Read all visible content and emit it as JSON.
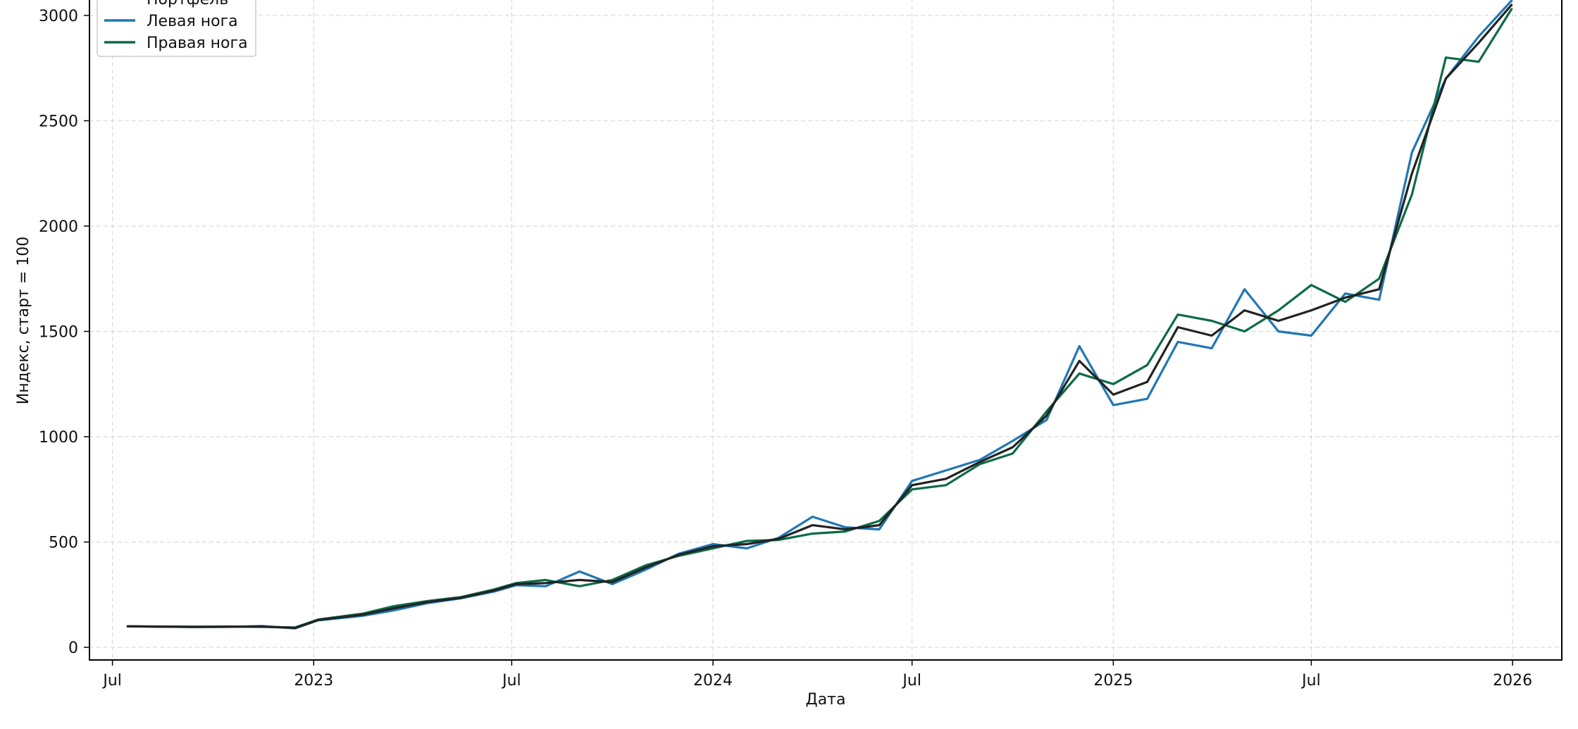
{
  "chart_data": {
    "type": "line",
    "xlabel": "Дата",
    "ylabel": "Индекс, старт = 100",
    "xlim": [
      "2022-06-10",
      "2026-02-15"
    ],
    "ylim": [
      -60,
      3080
    ],
    "yticks": [
      0,
      500,
      1000,
      1500,
      2000,
      2500,
      3000
    ],
    "xticks": [
      {
        "date": "2022-07-01",
        "label": "Jul"
      },
      {
        "date": "2023-01-01",
        "label": "2023"
      },
      {
        "date": "2023-07-01",
        "label": "Jul"
      },
      {
        "date": "2024-01-01",
        "label": "2024"
      },
      {
        "date": "2024-07-01",
        "label": "Jul"
      },
      {
        "date": "2025-01-01",
        "label": "2025"
      },
      {
        "date": "2025-07-01",
        "label": "Jul"
      },
      {
        "date": "2026-01-01",
        "label": "2026"
      }
    ],
    "grid": true,
    "legend_position": "top-left",
    "colors": {
      "portfolio": "#222222",
      "left": "#1f77b4",
      "right": "#0b6b45"
    },
    "series": [
      {
        "name": "Портфель",
        "color": "#222222",
        "points": [
          [
            "2022-07-15",
            100
          ],
          [
            "2022-08-15",
            98
          ],
          [
            "2022-09-15",
            97
          ],
          [
            "2022-10-15",
            98
          ],
          [
            "2022-11-15",
            99
          ],
          [
            "2022-12-15",
            92
          ],
          [
            "2023-01-05",
            130
          ],
          [
            "2023-02-15",
            155
          ],
          [
            "2023-03-15",
            185
          ],
          [
            "2023-04-15",
            215
          ],
          [
            "2023-05-15",
            235
          ],
          [
            "2023-06-15",
            270
          ],
          [
            "2023-07-05",
            300
          ],
          [
            "2023-08-01",
            305
          ],
          [
            "2023-09-01",
            320
          ],
          [
            "2023-10-01",
            310
          ],
          [
            "2023-11-01",
            380
          ],
          [
            "2023-12-01",
            440
          ],
          [
            "2024-01-01",
            480
          ],
          [
            "2024-02-01",
            490
          ],
          [
            "2024-03-01",
            515
          ],
          [
            "2024-04-01",
            580
          ],
          [
            "2024-05-01",
            560
          ],
          [
            "2024-06-01",
            580
          ],
          [
            "2024-07-01",
            770
          ],
          [
            "2024-08-01",
            800
          ],
          [
            "2024-09-01",
            880
          ],
          [
            "2024-10-01",
            950
          ],
          [
            "2024-11-01",
            1100
          ],
          [
            "2024-12-01",
            1360
          ],
          [
            "2025-01-01",
            1200
          ],
          [
            "2025-02-01",
            1260
          ],
          [
            "2025-03-01",
            1520
          ],
          [
            "2025-04-01",
            1480
          ],
          [
            "2025-05-01",
            1600
          ],
          [
            "2025-06-01",
            1550
          ],
          [
            "2025-07-01",
            1600
          ],
          [
            "2025-08-01",
            1660
          ],
          [
            "2025-09-01",
            1700
          ],
          [
            "2025-10-01",
            2250
          ],
          [
            "2025-11-01",
            2700
          ],
          [
            "2025-12-01",
            2870
          ],
          [
            "2025-12-31",
            3050
          ]
        ]
      },
      {
        "name": "Левая нога",
        "color": "#1f77b4",
        "points": [
          [
            "2022-07-15",
            100
          ],
          [
            "2022-08-15",
            98
          ],
          [
            "2022-09-15",
            96
          ],
          [
            "2022-10-15",
            97
          ],
          [
            "2022-11-15",
            101
          ],
          [
            "2022-12-15",
            90
          ],
          [
            "2023-01-05",
            128
          ],
          [
            "2023-02-15",
            150
          ],
          [
            "2023-03-15",
            175
          ],
          [
            "2023-04-15",
            210
          ],
          [
            "2023-05-15",
            232
          ],
          [
            "2023-06-15",
            265
          ],
          [
            "2023-07-05",
            295
          ],
          [
            "2023-08-01",
            290
          ],
          [
            "2023-09-01",
            360
          ],
          [
            "2023-10-01",
            300
          ],
          [
            "2023-11-01",
            370
          ],
          [
            "2023-12-01",
            445
          ],
          [
            "2024-01-01",
            490
          ],
          [
            "2024-02-01",
            470
          ],
          [
            "2024-03-01",
            520
          ],
          [
            "2024-04-01",
            620
          ],
          [
            "2024-05-01",
            570
          ],
          [
            "2024-06-01",
            560
          ],
          [
            "2024-07-01",
            790
          ],
          [
            "2024-08-01",
            840
          ],
          [
            "2024-09-01",
            890
          ],
          [
            "2024-10-01",
            980
          ],
          [
            "2024-11-01",
            1080
          ],
          [
            "2024-12-01",
            1430
          ],
          [
            "2025-01-01",
            1150
          ],
          [
            "2025-02-01",
            1180
          ],
          [
            "2025-03-01",
            1450
          ],
          [
            "2025-04-01",
            1420
          ],
          [
            "2025-05-01",
            1700
          ],
          [
            "2025-06-01",
            1500
          ],
          [
            "2025-07-01",
            1480
          ],
          [
            "2025-08-01",
            1680
          ],
          [
            "2025-09-01",
            1650
          ],
          [
            "2025-10-01",
            2350
          ],
          [
            "2025-11-01",
            2700
          ],
          [
            "2025-12-01",
            2900
          ],
          [
            "2025-12-31",
            3070
          ]
        ]
      },
      {
        "name": "Правая нога",
        "color": "#0b6b45",
        "points": [
          [
            "2022-07-15",
            100
          ],
          [
            "2022-08-15",
            99
          ],
          [
            "2022-09-15",
            98
          ],
          [
            "2022-10-15",
            99
          ],
          [
            "2022-11-15",
            97
          ],
          [
            "2022-12-15",
            94
          ],
          [
            "2023-01-05",
            132
          ],
          [
            "2023-02-15",
            160
          ],
          [
            "2023-03-15",
            195
          ],
          [
            "2023-04-15",
            220
          ],
          [
            "2023-05-15",
            238
          ],
          [
            "2023-06-15",
            275
          ],
          [
            "2023-07-05",
            305
          ],
          [
            "2023-08-01",
            320
          ],
          [
            "2023-09-01",
            290
          ],
          [
            "2023-10-01",
            320
          ],
          [
            "2023-11-01",
            390
          ],
          [
            "2023-12-01",
            435
          ],
          [
            "2024-01-01",
            470
          ],
          [
            "2024-02-01",
            505
          ],
          [
            "2024-03-01",
            510
          ],
          [
            "2024-04-01",
            540
          ],
          [
            "2024-05-01",
            550
          ],
          [
            "2024-06-01",
            600
          ],
          [
            "2024-07-01",
            750
          ],
          [
            "2024-08-01",
            770
          ],
          [
            "2024-09-01",
            870
          ],
          [
            "2024-10-01",
            920
          ],
          [
            "2024-11-01",
            1120
          ],
          [
            "2024-12-01",
            1300
          ],
          [
            "2025-01-01",
            1250
          ],
          [
            "2025-02-01",
            1340
          ],
          [
            "2025-03-01",
            1580
          ],
          [
            "2025-04-01",
            1550
          ],
          [
            "2025-05-01",
            1500
          ],
          [
            "2025-06-01",
            1600
          ],
          [
            "2025-07-01",
            1720
          ],
          [
            "2025-08-01",
            1640
          ],
          [
            "2025-09-01",
            1750
          ],
          [
            "2025-10-01",
            2150
          ],
          [
            "2025-11-01",
            2800
          ],
          [
            "2025-12-01",
            2780
          ],
          [
            "2025-12-31",
            3030
          ]
        ]
      }
    ]
  }
}
